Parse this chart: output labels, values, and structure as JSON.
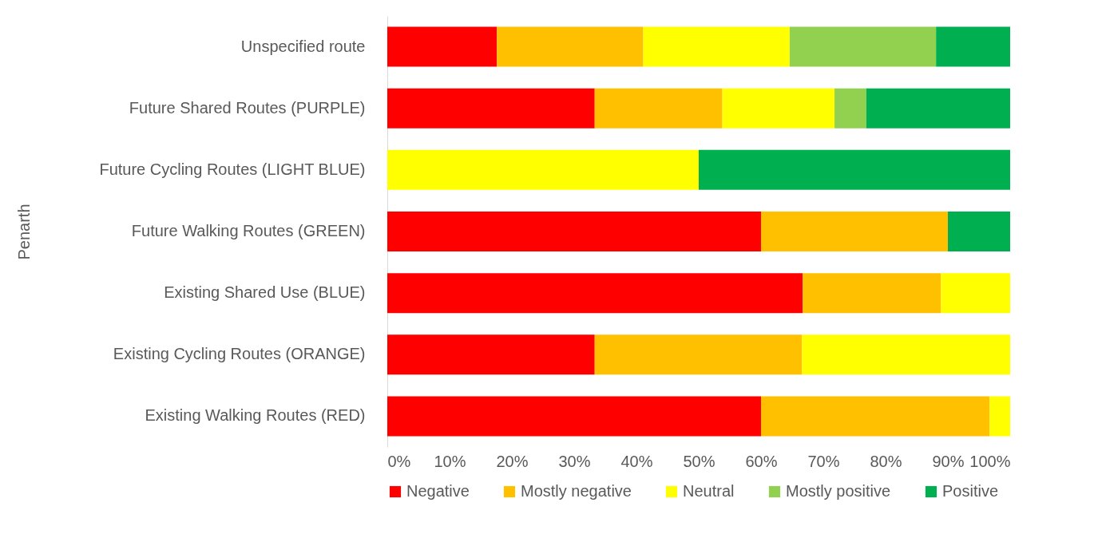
{
  "chart_data": {
    "type": "bar",
    "orientation": "horizontal",
    "stacked": true,
    "ylabel": "Penarth",
    "legend": "bottom",
    "grid": false,
    "categories": [
      "Unspecified route",
      "Future Shared Routes (PURPLE)",
      "Future Cycling Routes (LIGHT BLUE)",
      "Future Walking Routes (GREEN)",
      "Existing Shared Use (BLUE)",
      "Existing Cycling Routes (ORANGE)",
      "Existing Walking Routes (RED)"
    ],
    "series": [
      {
        "name": "Negative",
        "color": "#ff0000",
        "values": [
          17.6,
          33.3,
          0,
          60,
          66.7,
          33.3,
          60
        ]
      },
      {
        "name": "Mostly negative",
        "color": "#ffc000",
        "values": [
          23.5,
          20.5,
          0,
          30,
          22.2,
          33.3,
          36.7
        ]
      },
      {
        "name": "Neutral",
        "color": "#ffff00",
        "values": [
          23.5,
          18,
          50,
          0,
          11.1,
          33.4,
          3.3
        ]
      },
      {
        "name": "Mostly positive",
        "color": "#92d050",
        "values": [
          23.5,
          5.1,
          0,
          0,
          0,
          0,
          0
        ]
      },
      {
        "name": "Positive",
        "color": "#00b050",
        "values": [
          11.9,
          23.1,
          50,
          10,
          0,
          0,
          0
        ]
      }
    ],
    "xlim": [
      0,
      100
    ],
    "xticks": [
      {
        "value": 0,
        "label": "0%"
      },
      {
        "value": 10,
        "label": "10%"
      },
      {
        "value": 20,
        "label": "20%"
      },
      {
        "value": 30,
        "label": "30%"
      },
      {
        "value": 40,
        "label": "40%"
      },
      {
        "value": 50,
        "label": "50%"
      },
      {
        "value": 60,
        "label": "60%"
      },
      {
        "value": 70,
        "label": "70%"
      },
      {
        "value": 80,
        "label": "80%"
      },
      {
        "value": 90,
        "label": "90%"
      },
      {
        "value": 100,
        "label": "100%"
      }
    ]
  }
}
